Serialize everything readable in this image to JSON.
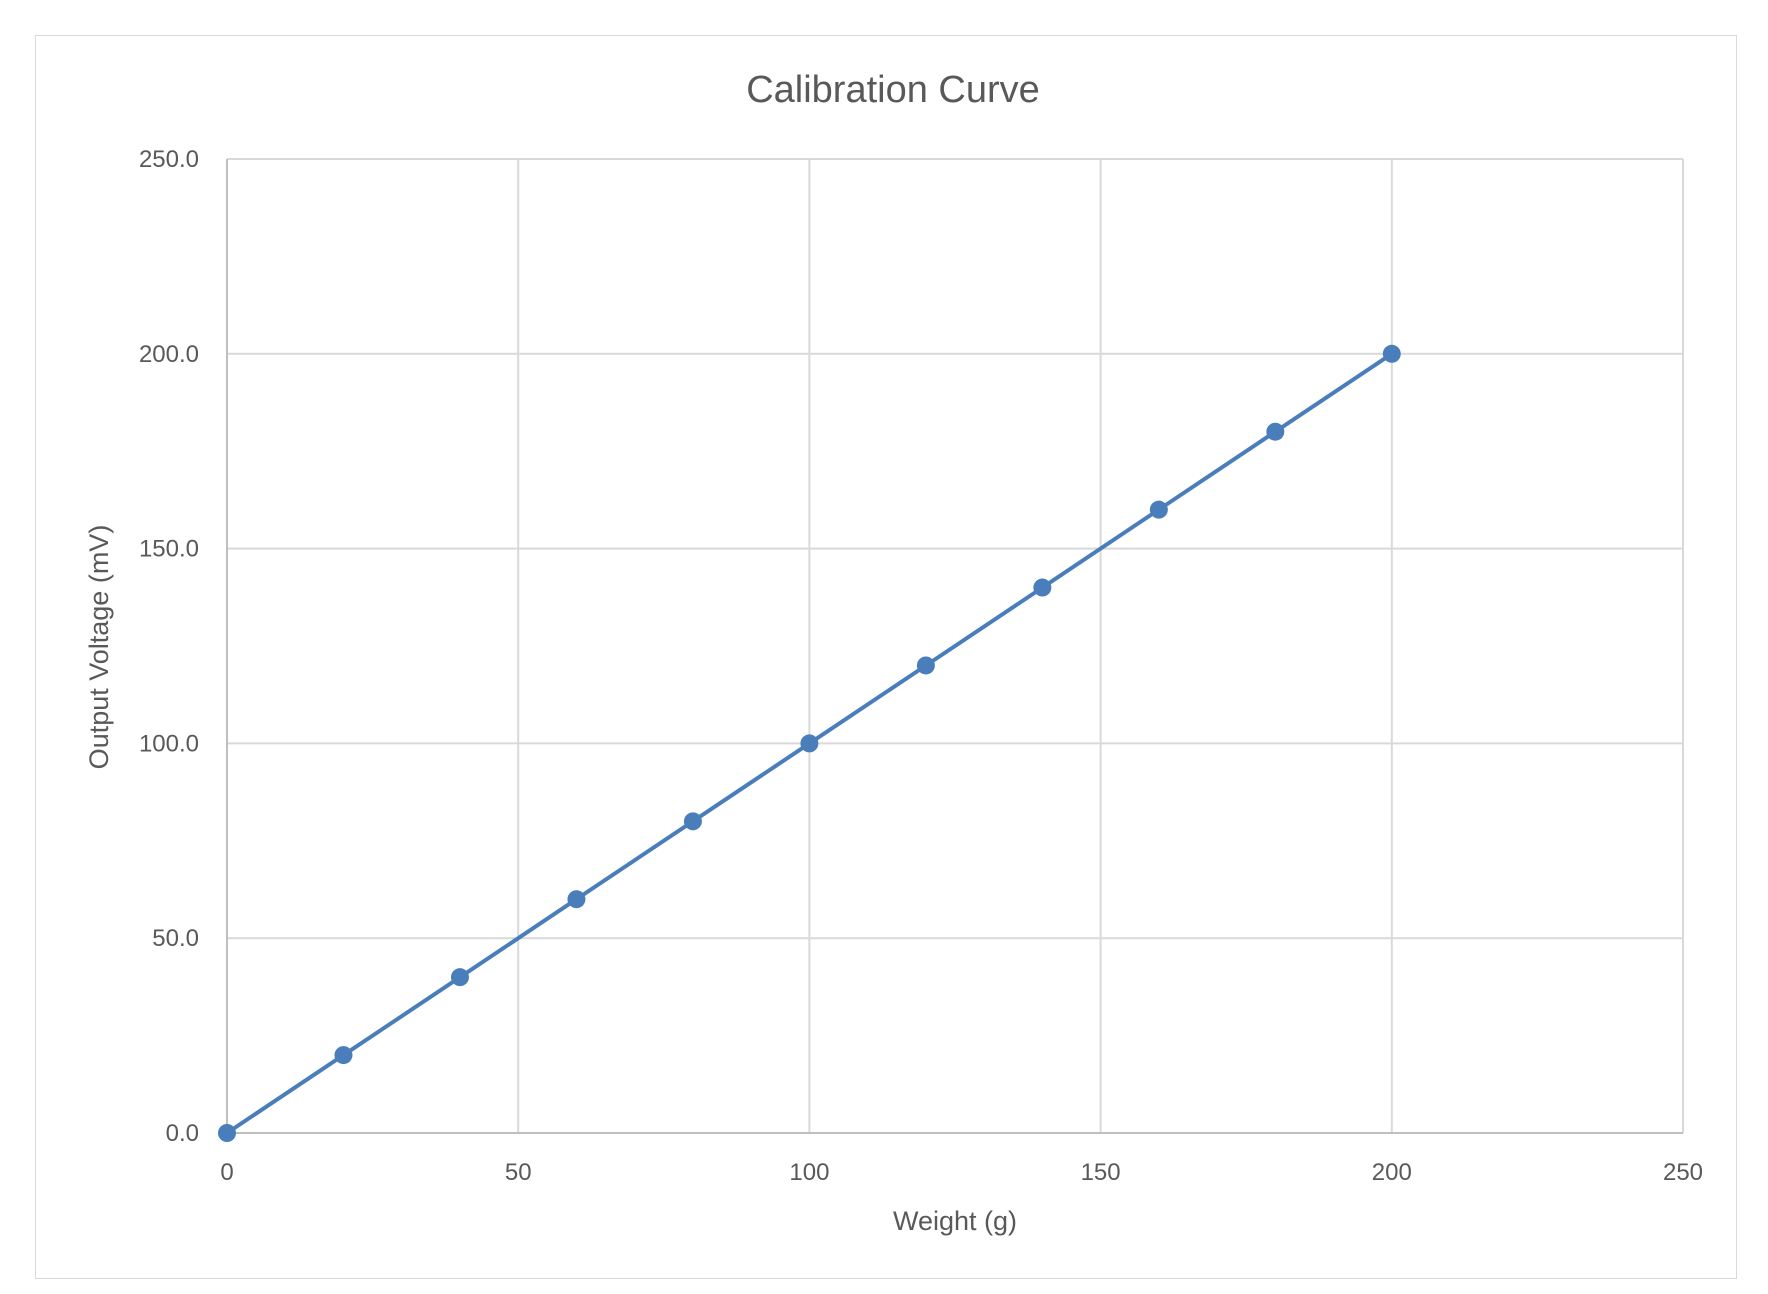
{
  "chart_data": {
    "type": "scatter",
    "title": "Calibration Curve",
    "xlabel": "Weight (g)",
    "ylabel": "Output Voltage (mV)",
    "xlim": [
      0,
      250
    ],
    "ylim": [
      0,
      250
    ],
    "x_ticks": [
      "0",
      "50",
      "100",
      "150",
      "200",
      "250"
    ],
    "y_ticks": [
      "0.0",
      "50.0",
      "100.0",
      "150.0",
      "200.0",
      "250.0"
    ],
    "grid": true,
    "legend": "none",
    "series": [
      {
        "x": [
          0,
          20,
          40,
          60,
          80,
          100,
          120,
          140,
          160,
          180,
          200
        ],
        "y": [
          0,
          20,
          40,
          60,
          80,
          100,
          120,
          140,
          160,
          180,
          200
        ],
        "color": "#4a7ebb",
        "marker": "circle",
        "line": "straight"
      }
    ]
  }
}
